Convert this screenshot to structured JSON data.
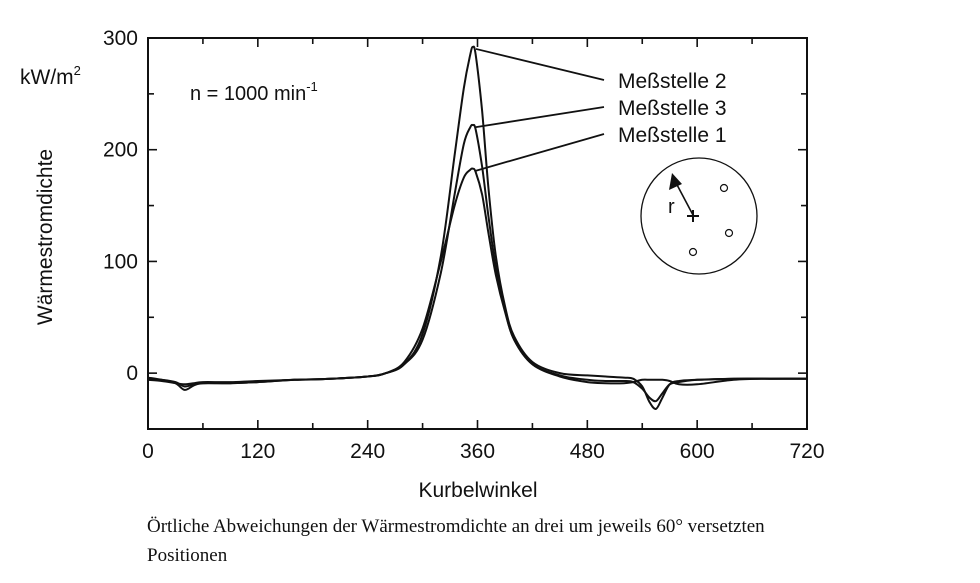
{
  "chart_data": {
    "type": "line",
    "xlabel": "Kurbelwinkel",
    "ylabel": "Wärmestromdichte",
    "yunit": {
      "base": "kW/m",
      "sup": "2"
    },
    "xlim": [
      0,
      720
    ],
    "ylim": [
      -50,
      300
    ],
    "xticks": [
      0,
      120,
      240,
      360,
      480,
      600,
      720
    ],
    "yticks": [
      0,
      100,
      200,
      300
    ],
    "annotation": {
      "base": "n = 1000 min",
      "sup": "-1"
    },
    "legend": [
      "Meßstelle 2",
      "Meßstelle 3",
      "Meßstelle 1"
    ],
    "inset": {
      "pointer_label": "r"
    },
    "series": [
      {
        "name": "Meßstelle 2",
        "peak": {
          "x": 355,
          "y": 292
        },
        "x": [
          0,
          15,
          30,
          40,
          50,
          60,
          90,
          120,
          160,
          200,
          240,
          260,
          280,
          300,
          320,
          335,
          345,
          352,
          355,
          358,
          365,
          372,
          380,
          390,
          400,
          420,
          450,
          480,
          500,
          520,
          530,
          540,
          548,
          555,
          562,
          570,
          580,
          600,
          640,
          680,
          720
        ],
        "y": [
          -5,
          -6,
          -8,
          -12,
          -10,
          -9,
          -9,
          -8,
          -6,
          -5,
          -3,
          0,
          8,
          35,
          105,
          195,
          255,
          285,
          292,
          285,
          235,
          165,
          105,
          60,
          33,
          10,
          0,
          -2,
          -3,
          -4,
          -5,
          -12,
          -26,
          -32,
          -22,
          -10,
          -7,
          -6,
          -5,
          -5,
          -5
        ]
      },
      {
        "name": "Meßstelle 3",
        "peak": {
          "x": 355,
          "y": 222
        },
        "x": [
          0,
          15,
          30,
          40,
          50,
          60,
          90,
          120,
          160,
          200,
          240,
          260,
          280,
          300,
          320,
          335,
          345,
          352,
          355,
          358,
          365,
          372,
          380,
          390,
          400,
          420,
          450,
          480,
          500,
          520,
          530,
          540,
          548,
          555,
          562,
          570,
          580,
          600,
          640,
          680,
          720
        ],
        "y": [
          -4,
          -6,
          -9,
          -15,
          -11,
          -9,
          -9,
          -8,
          -6,
          -5,
          -3,
          0,
          8,
          30,
          90,
          160,
          205,
          220,
          222,
          218,
          185,
          140,
          95,
          57,
          30,
          8,
          -3,
          -8,
          -9,
          -9,
          -8,
          -6,
          -6,
          -6,
          -6,
          -7,
          -10,
          -10,
          -6,
          -5,
          -5
        ]
      },
      {
        "name": "Meßstelle 1",
        "peak": {
          "x": 355,
          "y": 183
        },
        "x": [
          0,
          15,
          30,
          40,
          50,
          60,
          90,
          120,
          160,
          200,
          240,
          260,
          280,
          300,
          320,
          335,
          345,
          352,
          355,
          358,
          365,
          372,
          380,
          390,
          400,
          420,
          450,
          480,
          500,
          520,
          530,
          540,
          548,
          555,
          562,
          570,
          580,
          600,
          640,
          680,
          720
        ],
        "y": [
          -6,
          -7,
          -9,
          -10,
          -9,
          -8,
          -8,
          -7,
          -6,
          -5,
          -3,
          0,
          10,
          40,
          100,
          150,
          175,
          182,
          183,
          180,
          160,
          125,
          88,
          55,
          30,
          8,
          -2,
          -6,
          -7,
          -7,
          -8,
          -14,
          -22,
          -25,
          -18,
          -10,
          -8,
          -6,
          -5,
          -5,
          -5
        ]
      }
    ]
  },
  "caption": {
    "line1": "Örtliche Abweichungen der Wärmestromdichte an drei um jeweils 60° versetzten",
    "line2": "Positionen"
  }
}
